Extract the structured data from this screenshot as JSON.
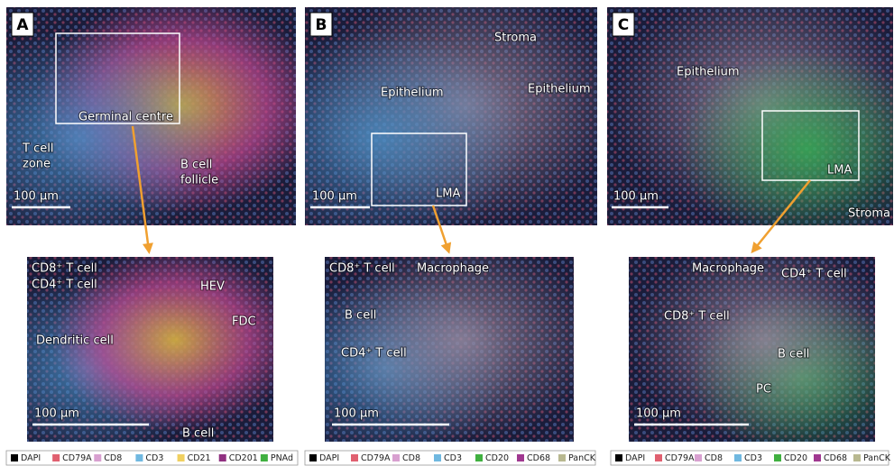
{
  "panels": [
    {
      "letter": "A",
      "overview": {
        "labels": [
          [
            "Germinal centre"
          ],
          [
            "T cell",
            "zone"
          ],
          [
            "B cell",
            "follicle"
          ]
        ],
        "scale_bar": "100 µm"
      },
      "zoom": {
        "labels": [
          [
            "CD8⁺ T cell"
          ],
          [
            "CD4⁺ T cell"
          ],
          [
            "HEV"
          ],
          [
            "FDC"
          ],
          [
            "Dendritic cell"
          ],
          [
            "B cell"
          ]
        ],
        "scale_bar": "100 µm"
      },
      "legend": [
        {
          "name": "DAPI",
          "color": "#000000"
        },
        {
          "name": "CD79A",
          "color": "#e06070"
        },
        {
          "name": "CD8",
          "color": "#d8a0d0"
        },
        {
          "name": "CD3",
          "color": "#70b8e0"
        },
        {
          "name": "CD21",
          "color": "#f0d060"
        },
        {
          "name": "CD201",
          "color": "#903080"
        },
        {
          "name": "PNAd",
          "color": "#40b040"
        }
      ]
    },
    {
      "letter": "B",
      "overview": {
        "labels": [
          [
            "Stroma"
          ],
          [
            "Epithelium"
          ],
          [
            "Epithelium"
          ],
          [
            "LMA"
          ]
        ],
        "scale_bar": "100 µm"
      },
      "zoom": {
        "labels": [
          [
            "CD8⁺ T cell"
          ],
          [
            "Macrophage"
          ],
          [
            "B cell"
          ],
          [
            "CD4⁺ T cell"
          ]
        ],
        "scale_bar": "100 µm"
      },
      "legend": [
        {
          "name": "DAPI",
          "color": "#000000"
        },
        {
          "name": "CD79A",
          "color": "#e06070"
        },
        {
          "name": "CD8",
          "color": "#d8a0d0"
        },
        {
          "name": "CD3",
          "color": "#70b8e0"
        },
        {
          "name": "CD20",
          "color": "#40b040"
        },
        {
          "name": "CD68",
          "color": "#a03890"
        },
        {
          "name": "PanCK",
          "color": "#b8b890"
        }
      ]
    },
    {
      "letter": "C",
      "overview": {
        "labels": [
          [
            "Epithelium"
          ],
          [
            "LMA"
          ],
          [
            "Stroma"
          ]
        ],
        "scale_bar": "100 µm"
      },
      "zoom": {
        "labels": [
          [
            "Macrophage"
          ],
          [
            "CD4⁺ T cell"
          ],
          [
            "CD8⁺ T cell"
          ],
          [
            "B cell"
          ],
          [
            "PC"
          ]
        ],
        "scale_bar": "100 µm"
      },
      "legend": [
        {
          "name": "DAPI",
          "color": "#000000"
        },
        {
          "name": "CD79A",
          "color": "#e06070"
        },
        {
          "name": "CD8",
          "color": "#d8a0d0"
        },
        {
          "name": "CD3",
          "color": "#70b8e0"
        },
        {
          "name": "CD20",
          "color": "#40b040"
        },
        {
          "name": "CD68",
          "color": "#a03890"
        },
        {
          "name": "PanCK",
          "color": "#b8b890"
        }
      ]
    }
  ]
}
